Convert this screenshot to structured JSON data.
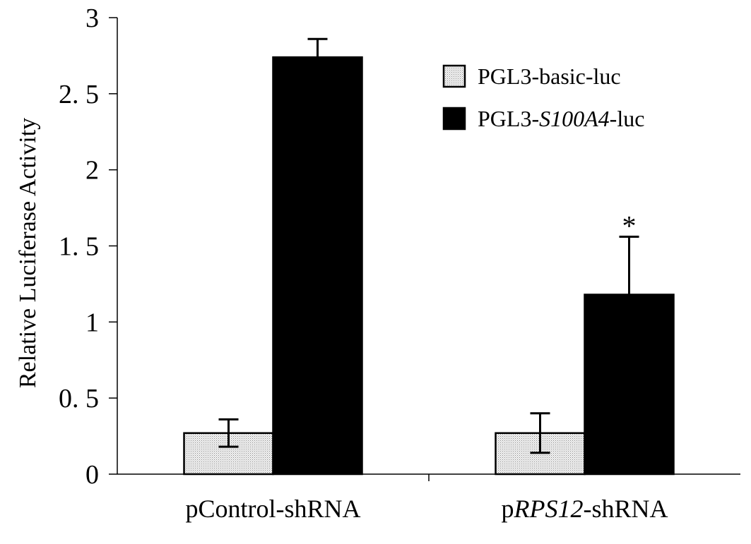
{
  "chart_data": {
    "type": "bar",
    "categories": [
      {
        "prefix": "p",
        "italic": "",
        "suffix": "Control-shRNA"
      },
      {
        "prefix": "p",
        "italic": "RPS12",
        "suffix": "-shRNA"
      }
    ],
    "series": [
      {
        "name": {
          "prefix": "PGL3-basic-luc",
          "italic": "",
          "suffix": ""
        },
        "values": [
          0.27,
          0.27
        ],
        "errors": [
          0.09,
          0.13
        ],
        "color": "#e6e6e6"
      },
      {
        "name": {
          "prefix": "PGL3-",
          "italic": "S100A4",
          "suffix": "-luc"
        },
        "values": [
          2.74,
          1.18
        ],
        "errors": [
          0.12,
          0.38
        ],
        "color": "#000000"
      }
    ],
    "ylabel": "Relative Luciferase Activity",
    "ylim": [
      0,
      3
    ],
    "yticks": [
      {
        "value": 0,
        "label": "0"
      },
      {
        "value": 0.5,
        "label": "0. 5"
      },
      {
        "value": 1,
        "label": "1"
      },
      {
        "value": 1.5,
        "label": "1. 5"
      },
      {
        "value": 2,
        "label": "2"
      },
      {
        "value": 2.5,
        "label": "2. 5"
      },
      {
        "value": 3,
        "label": "3"
      }
    ],
    "annotations": [
      {
        "text": "*",
        "category": 1,
        "series": 1
      }
    ],
    "legend_position": "top-right",
    "grid": false
  }
}
